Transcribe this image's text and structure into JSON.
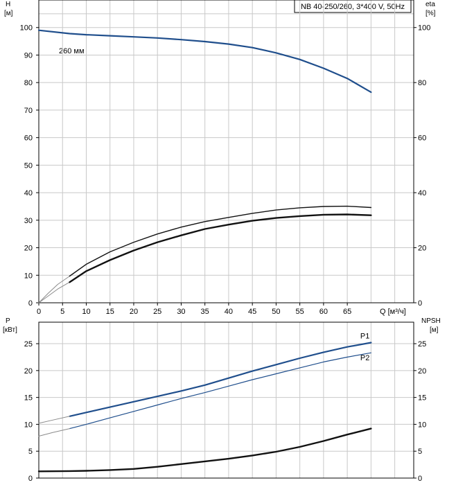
{
  "title_box": "NB 40-250/260, 3*400 V, 50Hz",
  "chart_data": [
    {
      "type": "line",
      "panel": "head-efficiency",
      "xlabel": "Q [м³/ч]",
      "x_ticks": [
        0,
        5,
        10,
        15,
        20,
        25,
        30,
        35,
        40,
        45,
        50,
        55,
        60,
        65
      ],
      "xlim": [
        0,
        79
      ],
      "left_axis": {
        "label_line1": "H",
        "label_line2": "[м]",
        "ticks": [
          0,
          10,
          20,
          30,
          40,
          50,
          60,
          70,
          80,
          90,
          100
        ],
        "ylim": [
          0,
          110
        ]
      },
      "right_axis": {
        "label_line1": "eta",
        "label_line2": "[%]",
        "ticks": [
          0,
          20,
          40,
          60,
          80,
          100
        ],
        "ylim": [
          0,
          110
        ]
      },
      "annotation": "260 мм",
      "grid": true,
      "series": [
        {
          "axis": "left",
          "color": "#1f4e8c",
          "width": 2.2,
          "x": [
            0,
            6.5,
            10,
            15,
            20,
            25,
            30,
            35,
            40,
            45,
            50,
            55,
            60,
            65,
            70
          ],
          "y": [
            99,
            97.8,
            97.4,
            97,
            96.6,
            96.2,
            95.6,
            94.9,
            94,
            92.7,
            90.8,
            88.4,
            85.2,
            81.5,
            76.5
          ]
        },
        {
          "axis": "left",
          "color": "#8a8a8a",
          "width": 1,
          "x": [
            0,
            2,
            4,
            6.5
          ],
          "y": [
            0,
            3.5,
            6.7,
            9.7
          ]
        },
        {
          "axis": "left",
          "color": "#8a8a8a",
          "width": 1,
          "x": [
            0,
            2,
            4,
            6.5
          ],
          "y": [
            0,
            2.5,
            5,
            7.5
          ]
        },
        {
          "axis": "left",
          "color": "#111111",
          "width": 1.4,
          "x": [
            6.5,
            10,
            15,
            20,
            25,
            30,
            35,
            40,
            45,
            50,
            55,
            60,
            65,
            70
          ],
          "y": [
            9.7,
            14,
            18.5,
            22,
            25,
            27.5,
            29.5,
            31,
            32.5,
            33.7,
            34.5,
            35,
            35.1,
            34.6
          ]
        },
        {
          "axis": "left",
          "color": "#111111",
          "width": 2.4,
          "x": [
            6.5,
            10,
            15,
            20,
            25,
            30,
            35,
            40,
            45,
            50,
            55,
            60,
            65,
            70
          ],
          "y": [
            7.5,
            11.5,
            15.5,
            19,
            22,
            24.5,
            26.8,
            28.4,
            29.8,
            30.8,
            31.5,
            32,
            32.1,
            31.8
          ]
        }
      ]
    },
    {
      "type": "line",
      "panel": "power-npsh",
      "xlim": [
        0,
        79
      ],
      "left_axis": {
        "label_line1": "P",
        "label_line2": "[кВт]",
        "ticks": [
          0,
          5,
          10,
          15,
          20,
          25
        ],
        "ylim": [
          0,
          29
        ]
      },
      "right_axis": {
        "label_line1": "NPSH",
        "label_line2": "[м]",
        "ticks": [
          0,
          5,
          10,
          15,
          20,
          25
        ],
        "ylim": [
          0,
          29
        ]
      },
      "grid": true,
      "series": [
        {
          "name": "P1",
          "color": "#1f4e8c",
          "width": 2.2,
          "x": [
            6.5,
            10,
            15,
            20,
            25,
            30,
            35,
            40,
            45,
            50,
            55,
            60,
            65,
            70
          ],
          "y": [
            11.5,
            12.2,
            13.2,
            14.2,
            15.2,
            16.2,
            17.3,
            18.6,
            19.9,
            21.1,
            22.3,
            23.4,
            24.4,
            25.2
          ]
        },
        {
          "color": "#8a8a8a",
          "width": 1,
          "x": [
            0,
            3,
            6.5
          ],
          "y": [
            10.2,
            10.8,
            11.5
          ]
        },
        {
          "name": "P2",
          "color": "#1f4e8c",
          "width": 1.2,
          "x": [
            6.5,
            10,
            15,
            20,
            25,
            30,
            35,
            40,
            45,
            50,
            55,
            60,
            65,
            70
          ],
          "y": [
            9.2,
            10,
            11.2,
            12.4,
            13.6,
            14.8,
            15.9,
            17.1,
            18.3,
            19.4,
            20.5,
            21.6,
            22.5,
            23.3
          ]
        },
        {
          "color": "#8a8a8a",
          "width": 1,
          "x": [
            0,
            3,
            6.5
          ],
          "y": [
            7.8,
            8.5,
            9.2
          ]
        },
        {
          "color": "#111111",
          "width": 2.4,
          "x": [
            0,
            6.5,
            10,
            15,
            20,
            25,
            30,
            35,
            40,
            45,
            50,
            55,
            60,
            65,
            70
          ],
          "y": [
            1.25,
            1.3,
            1.35,
            1.5,
            1.7,
            2.1,
            2.6,
            3.1,
            3.6,
            4.2,
            4.9,
            5.8,
            6.9,
            8.1,
            9.2
          ]
        }
      ]
    }
  ]
}
